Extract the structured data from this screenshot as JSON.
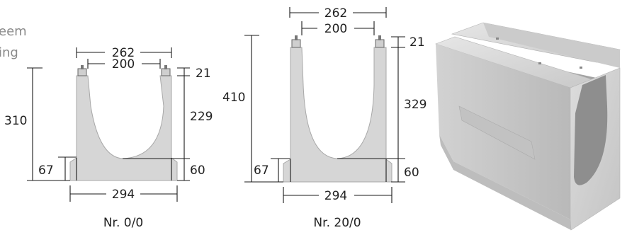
{
  "left_text_fragments": [
    "eem",
    "ing"
  ],
  "profiles": [
    {
      "caption": "Nr. 0/0",
      "dims": {
        "outer_top_width": "262",
        "inner_top_width": "200",
        "rim_height": "21",
        "total_height": "310",
        "channel_depth": "229",
        "base_height": "67",
        "invert_height": "60",
        "base_width": "294"
      }
    },
    {
      "caption": "Nr. 20/0",
      "dims": {
        "outer_top_width": "262",
        "inner_top_width": "200",
        "rim_height": "21",
        "total_height": "410",
        "channel_depth": "329",
        "base_height": "67",
        "invert_height": "60",
        "base_width": "294"
      }
    }
  ],
  "colors": {
    "concrete_fill": "#d6d6d6",
    "concrete_edge": "#a8a8a8",
    "dimension_line": "#1a1a1a",
    "fragment_text": "#8a8a8a"
  }
}
